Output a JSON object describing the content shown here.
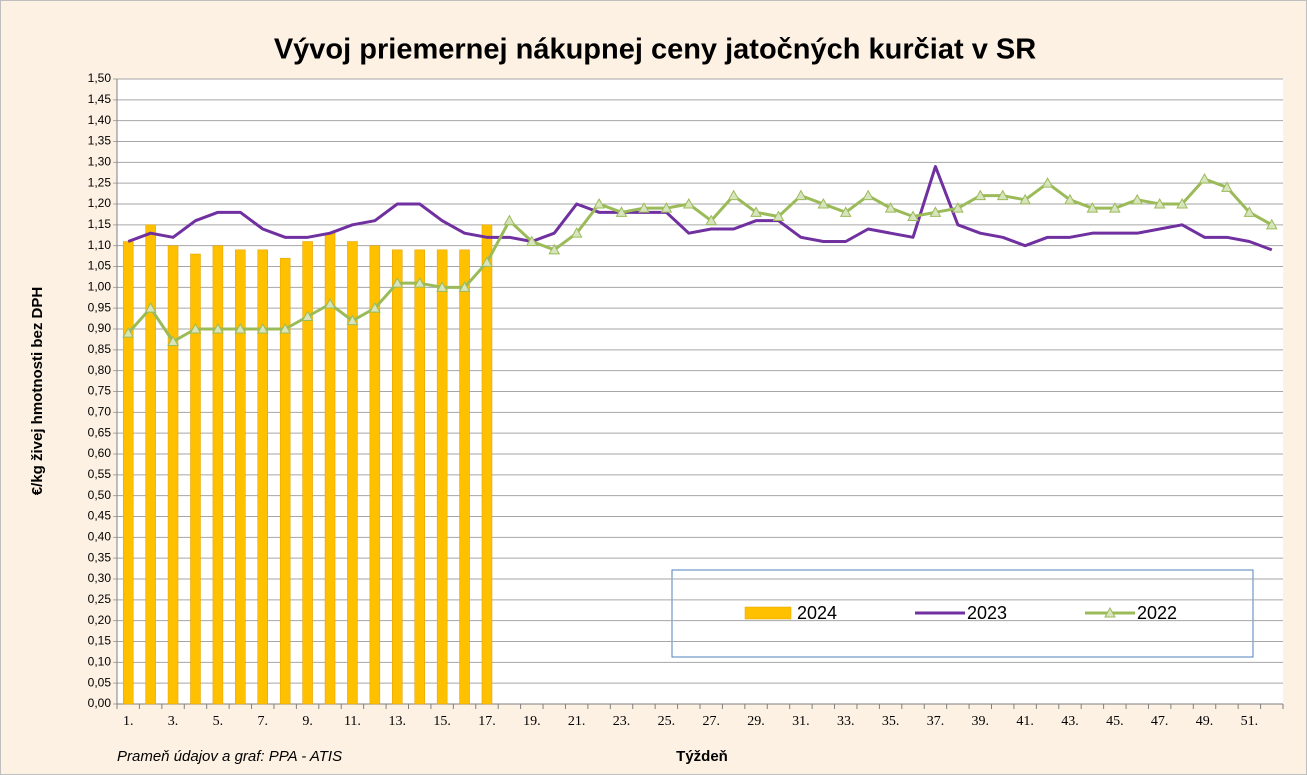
{
  "chart_data": {
    "type": "combo",
    "title": "Vývoj priemernej nákupnej ceny jatočných kurčiat v SR",
    "y_label": "€/kg živej hmotnosti bez DPH",
    "x_label": "Týždeň",
    "source": "Prameň údajov a graf: PPA - ATIS",
    "categories": [
      "1.",
      null,
      "3.",
      null,
      "5.",
      null,
      "7.",
      null,
      "9.",
      null,
      "11.",
      null,
      "13.",
      null,
      "15.",
      null,
      "17.",
      null,
      "19.",
      null,
      "21.",
      null,
      "23.",
      null,
      "25.",
      null,
      "27.",
      null,
      "29.",
      null,
      "31.",
      null,
      "33.",
      null,
      "35.",
      null,
      "37.",
      null,
      "39.",
      null,
      "41.",
      null,
      "43.",
      null,
      "45.",
      null,
      "47.",
      null,
      "49.",
      null,
      "51.",
      null
    ],
    "series": [
      {
        "name": "2024",
        "type": "bar",
        "color": "#ffc000",
        "values": [
          1.11,
          1.15,
          1.1,
          1.08,
          1.1,
          1.09,
          1.09,
          1.07,
          1.11,
          1.13,
          1.11,
          1.1,
          1.09,
          1.09,
          1.09,
          1.09,
          1.15,
          null,
          null,
          null,
          null,
          null,
          null,
          null,
          null,
          null,
          null,
          null,
          null,
          null,
          null,
          null,
          null,
          null,
          null,
          null,
          null,
          null,
          null,
          null,
          null,
          null,
          null,
          null,
          null,
          null,
          null,
          null,
          null,
          null,
          null,
          null
        ]
      },
      {
        "name": "2023",
        "type": "line",
        "color": "#7030a0",
        "values": [
          1.11,
          1.13,
          1.12,
          1.16,
          1.18,
          1.18,
          1.14,
          1.12,
          1.12,
          1.13,
          1.15,
          1.16,
          1.2,
          1.2,
          1.16,
          1.13,
          1.12,
          1.12,
          1.11,
          1.13,
          1.2,
          1.18,
          1.18,
          1.18,
          1.18,
          1.13,
          1.14,
          1.14,
          1.16,
          1.16,
          1.12,
          1.11,
          1.11,
          1.14,
          1.13,
          1.12,
          1.29,
          1.15,
          1.13,
          1.12,
          1.1,
          1.12,
          1.12,
          1.13,
          1.13,
          1.13,
          1.14,
          1.15,
          1.12,
          1.12,
          1.11,
          1.09
        ]
      },
      {
        "name": "2022",
        "type": "line-marker",
        "color": "#9bbb59",
        "values": [
          0.89,
          0.95,
          0.87,
          0.9,
          0.9,
          0.9,
          0.9,
          0.9,
          0.93,
          0.96,
          0.92,
          0.95,
          1.01,
          1.01,
          1.0,
          1.0,
          1.06,
          1.16,
          1.11,
          1.09,
          1.13,
          1.2,
          1.18,
          1.19,
          1.19,
          1.2,
          1.16,
          1.22,
          1.18,
          1.17,
          1.22,
          1.2,
          1.18,
          1.22,
          1.19,
          1.17,
          1.18,
          1.19,
          1.22,
          1.22,
          1.21,
          1.25,
          1.21,
          1.19,
          1.19,
          1.21,
          1.2,
          1.2,
          1.26,
          1.24,
          1.18,
          1.15
        ]
      }
    ],
    "ylim": [
      0,
      1.5
    ],
    "yticks": [
      {
        "value": 0,
        "label": "0,00"
      },
      {
        "value": 0.05,
        "label": "0,05"
      },
      {
        "value": 0.1,
        "label": "0,10"
      },
      {
        "value": 0.15,
        "label": "0,15"
      },
      {
        "value": 0.2,
        "label": "0,20"
      },
      {
        "value": 0.25,
        "label": "0,25"
      },
      {
        "value": 0.3,
        "label": "0,30"
      },
      {
        "value": 0.35,
        "label": "0,35"
      },
      {
        "value": 0.4,
        "label": "0,40"
      },
      {
        "value": 0.45,
        "label": "0,45"
      },
      {
        "value": 0.5,
        "label": "0,50"
      },
      {
        "value": 0.55,
        "label": "0,55"
      },
      {
        "value": 0.6,
        "label": "0,60"
      },
      {
        "value": 0.65,
        "label": "0,65"
      },
      {
        "value": 0.7,
        "label": "0,70"
      },
      {
        "value": 0.75,
        "label": "0,75"
      },
      {
        "value": 0.8,
        "label": "0,80"
      },
      {
        "value": 0.85,
        "label": "0,85"
      },
      {
        "value": 0.9,
        "label": "0,90"
      },
      {
        "value": 0.95,
        "label": "0,95"
      },
      {
        "value": 1.0,
        "label": "1,00"
      },
      {
        "value": 1.05,
        "label": "1,05"
      },
      {
        "value": 1.1,
        "label": "1,10"
      },
      {
        "value": 1.15,
        "label": "1,15"
      },
      {
        "value": 1.2,
        "label": "1,20"
      },
      {
        "value": 1.25,
        "label": "1,25"
      },
      {
        "value": 1.3,
        "label": "1,30"
      },
      {
        "value": 1.35,
        "label": "1,35"
      },
      {
        "value": 1.4,
        "label": "1,40"
      },
      {
        "value": 1.45,
        "label": "1,45"
      },
      {
        "value": 1.5,
        "label": "1,50"
      }
    ],
    "grid": true,
    "legend": "bottom-right"
  }
}
